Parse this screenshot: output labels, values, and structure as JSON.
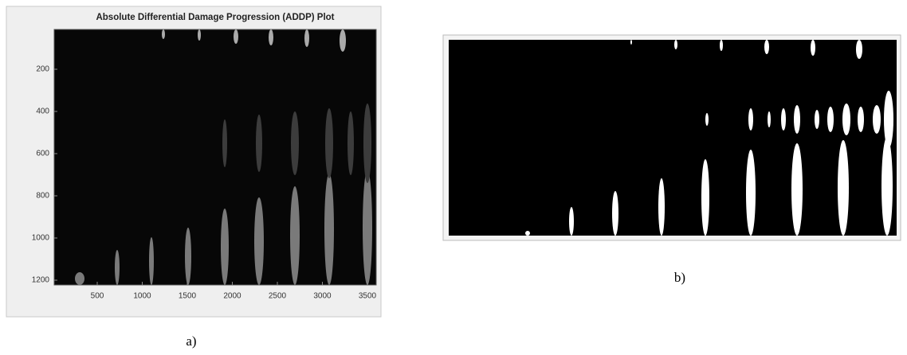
{
  "panel_a": {
    "title": "Absolute Differential Damage Progression (ADDP) Plot",
    "xticks": [
      "500",
      "1000",
      "1500",
      "2000",
      "2500",
      "3000",
      "3500"
    ],
    "yticks": [
      "200",
      "400",
      "600",
      "800",
      "1000",
      "1200"
    ],
    "caption": "a)"
  },
  "panel_b": {
    "caption": "b)"
  }
}
